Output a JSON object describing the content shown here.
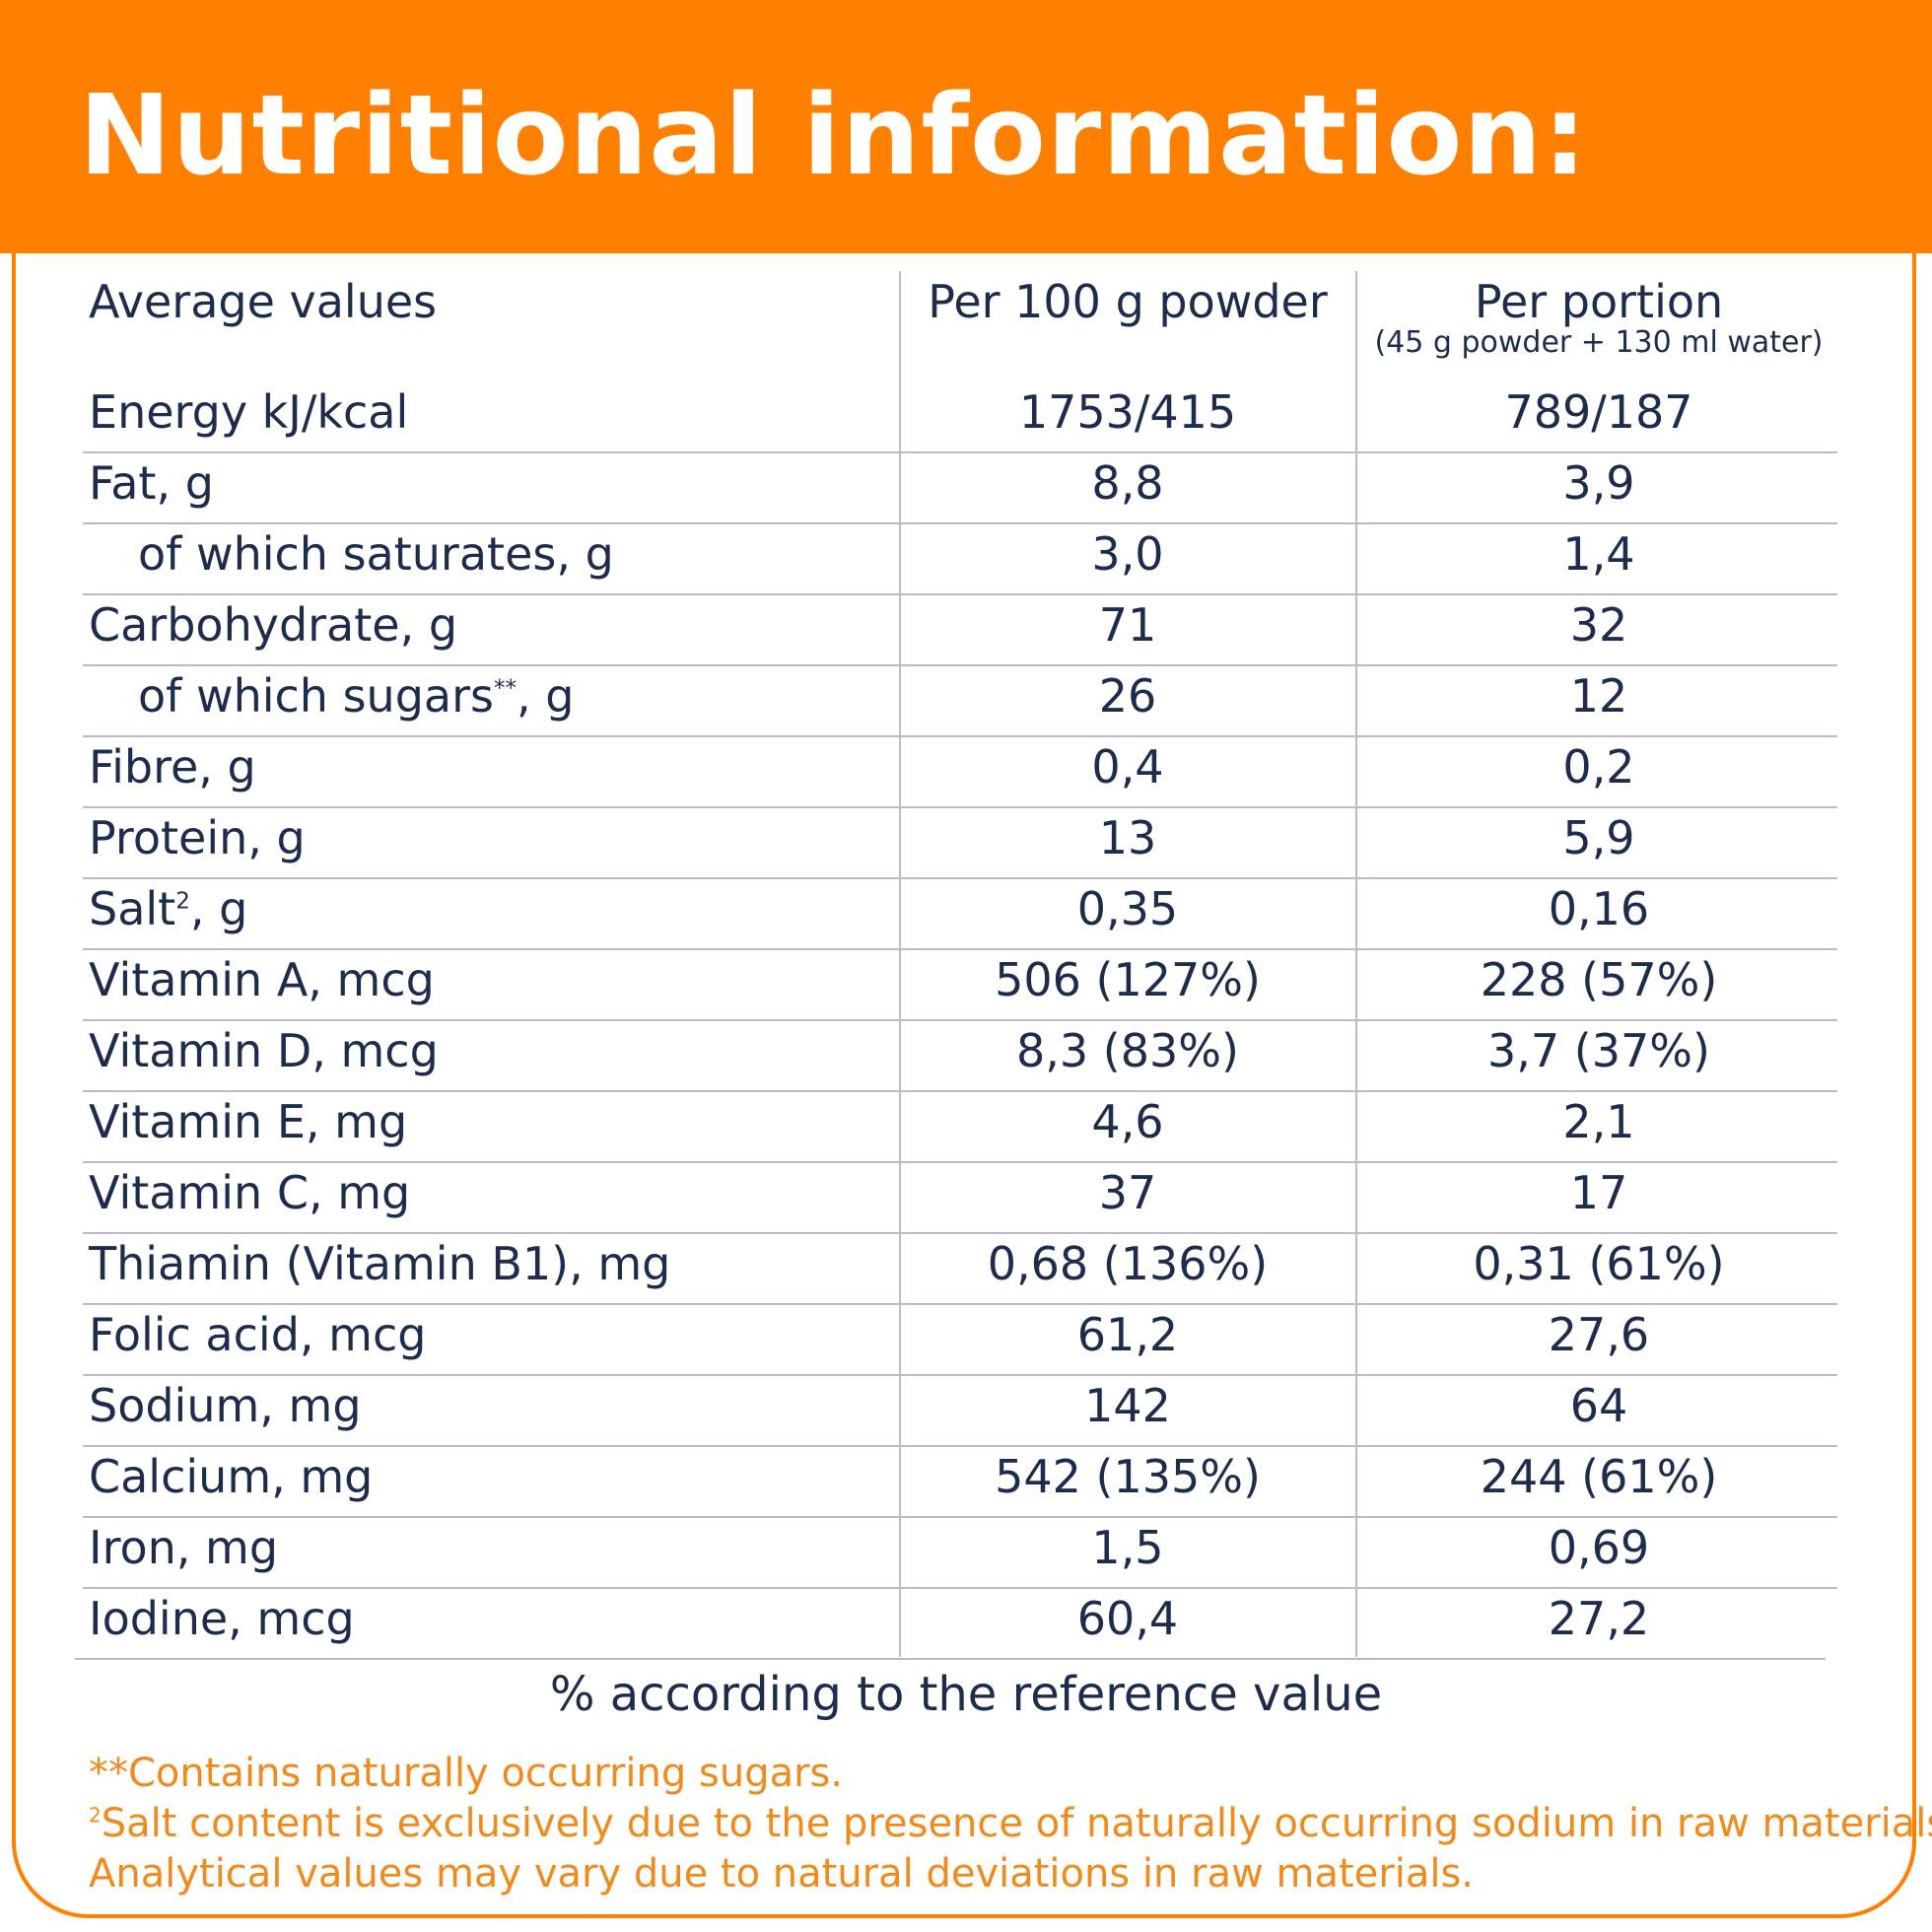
{
  "header": {
    "title": "Nutritional information:"
  },
  "table": {
    "columns": {
      "label": "Average values",
      "per100": "Per 100 g powder",
      "portion": "Per portion",
      "portion_note": "(45 g powder + 130 ml water)"
    },
    "rows": [
      {
        "label": "Energy kJ/kcal",
        "per100": "1753/415",
        "portion": "789/187"
      },
      {
        "label": "Fat, g",
        "per100": "8,8",
        "portion": "3,9"
      },
      {
        "label": "of which saturates, g",
        "per100": "3,0",
        "portion": "1,4"
      },
      {
        "label": "Carbohydrate, g",
        "per100": "71",
        "portion": "32"
      },
      {
        "label": "of which sugars",
        "label_sup": "**",
        "label_suffix": ", g",
        "per100": "26",
        "portion": "12"
      },
      {
        "label": "Fibre, g",
        "per100": "0,4",
        "portion": "0,2"
      },
      {
        "label": "Protein, g",
        "per100": "13",
        "portion": "5,9"
      },
      {
        "label": "Salt",
        "label_sup": "2",
        "label_suffix": ", g",
        "per100": "0,35",
        "portion": "0,16"
      },
      {
        "label": "Vitamin A, mcg",
        "per100": "506 (127%)",
        "portion": "228 (57%)"
      },
      {
        "label": "Vitamin D, mcg",
        "per100": "8,3 (83%)",
        "portion": "3,7 (37%)"
      },
      {
        "label": "Vitamin E, mg",
        "per100": "4,6",
        "portion": "2,1"
      },
      {
        "label": "Vitamin C, mg",
        "per100": "37",
        "portion": "17"
      },
      {
        "label": "Thiamin (Vitamin B1), mg",
        "per100": "0,68 (136%)",
        "portion": "0,31 (61%)"
      },
      {
        "label": "Folic acid, mcg",
        "per100": "61,2",
        "portion": "27,6"
      },
      {
        "label": "Sodium, mg",
        "per100": "142",
        "portion": "64"
      },
      {
        "label": "Calcium, mg",
        "per100": "542 (135%)",
        "portion": "244 (61%)"
      },
      {
        "label": "Iron, mg",
        "per100": "1,5",
        "portion": "0,69"
      },
      {
        "label": "Iodine, mcg",
        "per100": "60,4",
        "portion": "27,2"
      }
    ]
  },
  "reference_note": "% according to the reference value",
  "footnotes": {
    "sugars": "**Contains naturally occurring sugars.",
    "salt_sup": "2",
    "salt": "Salt content is exclusively due to the presence of naturally occurring sodium in raw materials",
    "analytical": "Analytical values may vary due to natural deviations in raw materials."
  },
  "colors": {
    "accent": "#ff7f00",
    "text": "#1d2b4c",
    "footnote": "#f08a1c",
    "rule": "#b7bcc6"
  }
}
